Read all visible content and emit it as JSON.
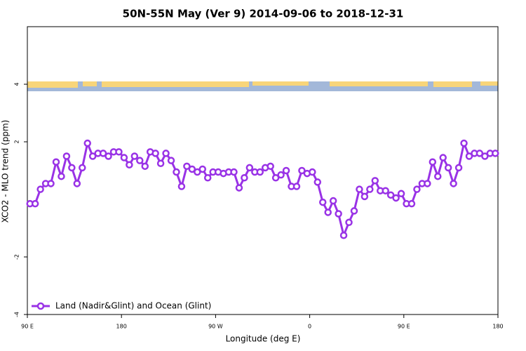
{
  "chart_data": {
    "type": "line",
    "title": "50N-55N May (Ver 9)   2014-09-06 to 2018-12-31",
    "x_label": "Longitude (deg E)",
    "y_label": "XCO2 - MLO trend (ppm)",
    "x": [
      92.5,
      97.5,
      102.5,
      107.5,
      112.5,
      117.5,
      122.5,
      127.5,
      132.5,
      137.5,
      142.5,
      147.5,
      152.5,
      157.5,
      162.5,
      167.5,
      172.5,
      177.5,
      182.5,
      187.5,
      192.5,
      197.5,
      202.5,
      207.5,
      212.5,
      217.5,
      222.5,
      227.5,
      232.5,
      237.5,
      242.5,
      247.5,
      252.5,
      257.5,
      262.5,
      267.5,
      272.5,
      277.5,
      282.5,
      287.5,
      292.5,
      297.5,
      302.5,
      307.5,
      312.5,
      317.5,
      322.5,
      327.5,
      332.5,
      337.5,
      342.5,
      347.5,
      352.5,
      357.5,
      362.5,
      367.5,
      372.5,
      377.5,
      382.5,
      387.5,
      392.5,
      397.5,
      402.5,
      407.5,
      412.5,
      417.5,
      422.5,
      427.5,
      432.5,
      437.5,
      442.5,
      447.5,
      452.5,
      457.5,
      462.5,
      467.5,
      472.5,
      477.5,
      482.5,
      487.5,
      492.5,
      497.5,
      502.5,
      507.5,
      512.5,
      517.5,
      522.5,
      527.5,
      532.5,
      537.5
    ],
    "series": [
      {
        "name": "Land (Nadir&Glint) and Ocean (Glint)",
        "color": "#9932e6",
        "values": [
          -0.15,
          -0.15,
          0.35,
          0.55,
          0.55,
          1.3,
          0.8,
          1.5,
          1.1,
          0.55,
          1.1,
          1.95,
          1.5,
          1.6,
          1.6,
          1.5,
          1.65,
          1.65,
          1.45,
          1.2,
          1.5,
          1.35,
          1.15,
          1.65,
          1.6,
          1.25,
          1.6,
          1.35,
          0.95,
          0.45,
          1.15,
          1.05,
          0.95,
          1.05,
          0.75,
          0.95,
          0.95,
          0.9,
          0.95,
          0.95,
          0.4,
          0.75,
          1.1,
          0.95,
          0.95,
          1.1,
          1.15,
          0.75,
          0.85,
          1.0,
          0.45,
          0.45,
          1.0,
          0.9,
          0.95,
          0.6,
          -0.1,
          -0.45,
          -0.05,
          -0.5,
          -1.25,
          -0.8,
          -0.4,
          0.35,
          0.1,
          0.35,
          0.65,
          0.3,
          0.3,
          0.15,
          0.05,
          0.2,
          -0.15,
          -0.15,
          0.35,
          0.55,
          0.55,
          1.3,
          0.8,
          1.45,
          1.1,
          0.55,
          1.1,
          1.95,
          1.5,
          1.6,
          1.6,
          1.5,
          1.6,
          1.6
        ]
      }
    ],
    "xlim": [
      90,
      540
    ],
    "xticks": [
      {
        "value": 90,
        "label": "90 E"
      },
      180,
      {
        "value": 270,
        "label": "90 W"
      },
      {
        "value": 360,
        "label": "0"
      },
      {
        "value": 450,
        "label": "90 E"
      },
      {
        "value": 540,
        "label": "180"
      }
    ],
    "ylim": [
      -4,
      6
    ],
    "yticks": [
      -4,
      -2,
      2,
      4
    ],
    "legend": "bottom-left"
  }
}
